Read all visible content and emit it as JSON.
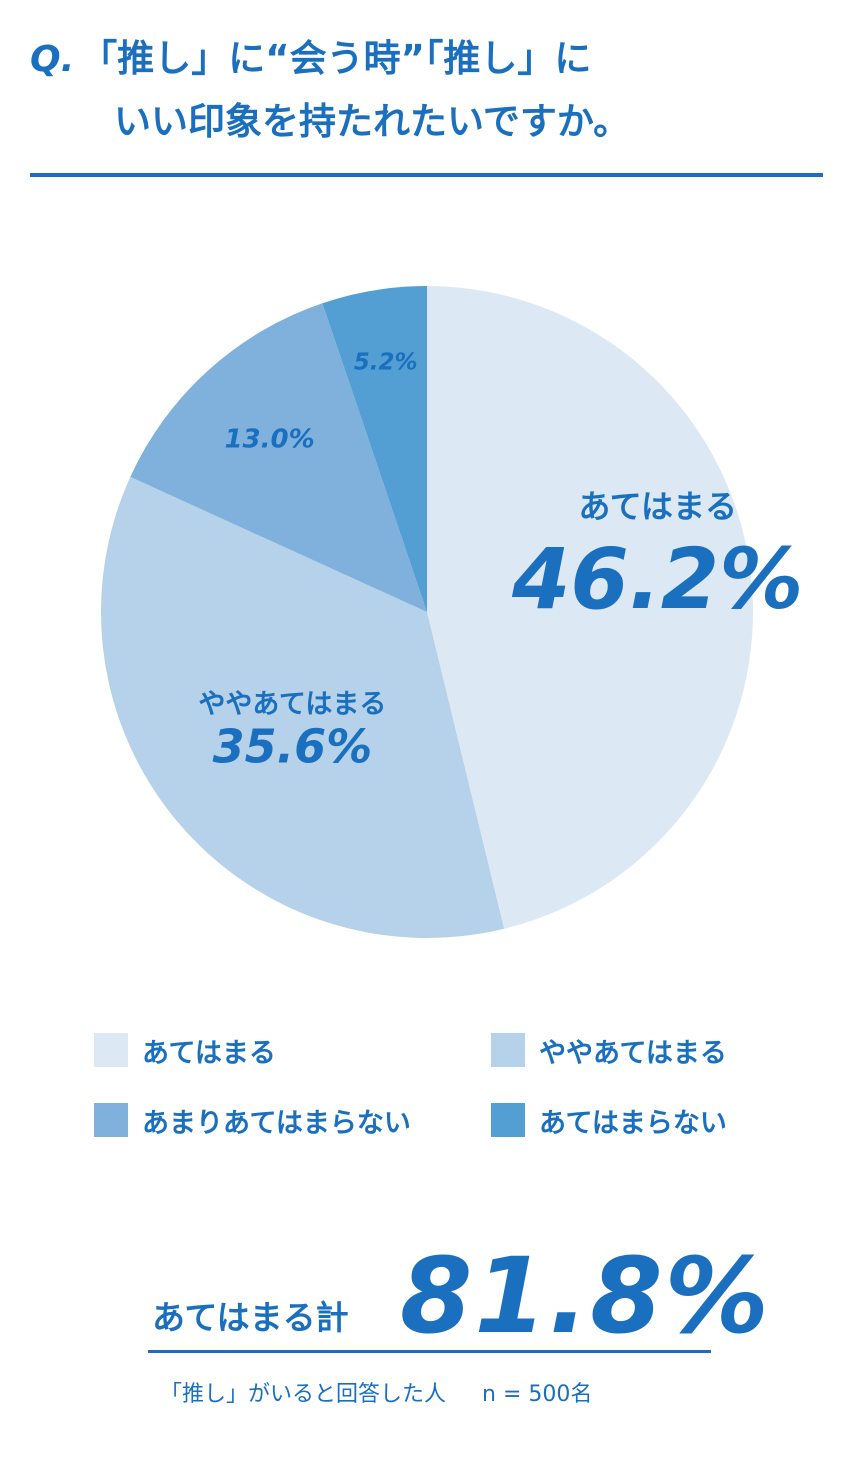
{
  "title": {
    "q_mark": "Q.",
    "line1": "「推し」に“会う時”「推し」に",
    "line2": "いい印象を持たれたいですか。"
  },
  "colors": {
    "accent": "#1a6fbf",
    "slice_1": "#dce9f5",
    "slice_2": "#b5d2ea",
    "slice_3": "#7fb1dc",
    "slice_4": "#539fd3"
  },
  "chart_data": {
    "type": "pie",
    "start_angle": "12 o'clock",
    "direction": "clockwise",
    "slices": [
      {
        "label": "あてはまる",
        "value": 46.2,
        "display": "46.2%",
        "color": "#dce9f5"
      },
      {
        "label": "ややあてはまる",
        "value": 35.6,
        "display": "35.6%",
        "color": "#b5d2ea"
      },
      {
        "label": "あまりあてはまらない",
        "value": 13.0,
        "display": "13.0%",
        "color": "#7fb1dc"
      },
      {
        "label": "あてはまらない",
        "value": 5.2,
        "display": "5.2%",
        "color": "#539fd3"
      }
    ]
  },
  "legend": {
    "items": [
      {
        "label": "あてはまる",
        "color": "#dce9f5"
      },
      {
        "label": "ややあてはまる",
        "color": "#b5d2ea"
      },
      {
        "label": "あまりあてはまらない",
        "color": "#7fb1dc"
      },
      {
        "label": "あてはまらない",
        "color": "#539fd3"
      }
    ]
  },
  "total": {
    "label": "あてはまる計",
    "value": "81.8%"
  },
  "footnote": {
    "respondents": "「推し」がいると回答した人",
    "sample": "n = 500名"
  }
}
